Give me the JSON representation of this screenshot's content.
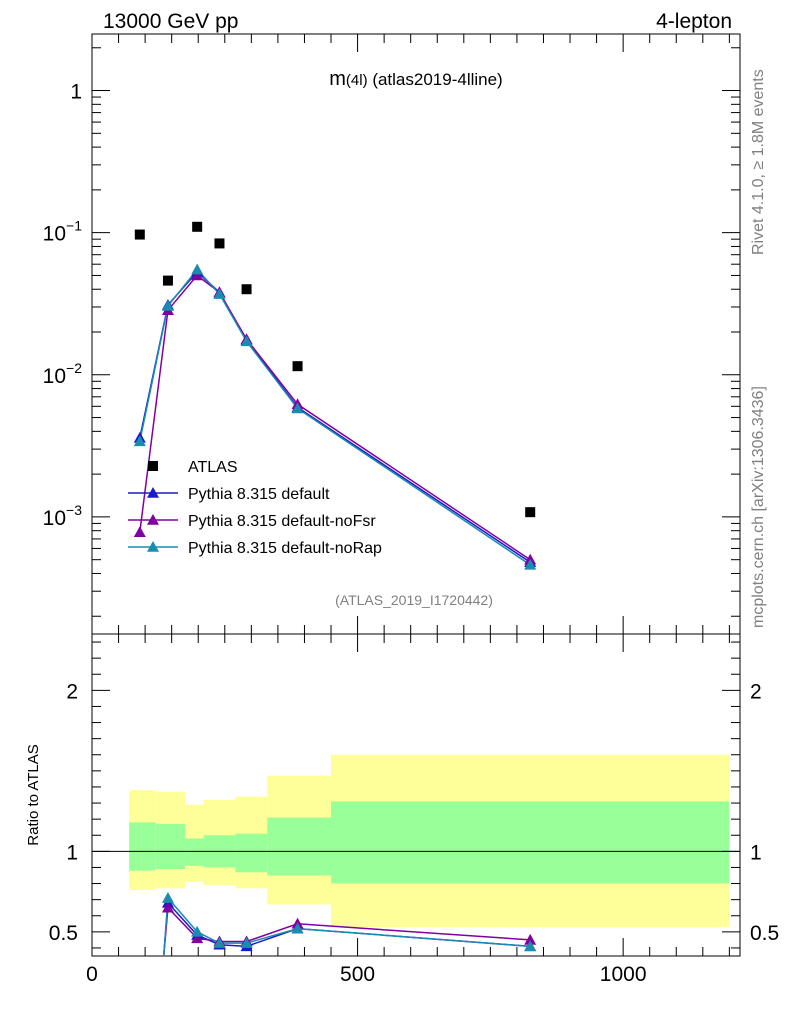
{
  "header": {
    "left": "13000 GeV pp",
    "right": "4-lepton"
  },
  "side_labels": {
    "rivet": "Rivet 4.1.0, ≥ 1.8M events",
    "mcplots": "mcplots.cern.ch [arXiv:1306.3436]"
  },
  "colors": {
    "data": "#000000",
    "default": "#1a1acc",
    "noFsr": "#8000a0",
    "noRap": "#1a8cb0",
    "band_inner": "#99ff99",
    "band_outer": "#ffff99",
    "ratio_line": "#000000",
    "watermark": "#808080"
  },
  "chart_data": [
    {
      "type": "line",
      "title": "m(4l) (atlas2019-4lline)",
      "title_main": "m",
      "title_sub": "(4l)",
      "title_rest": " (atlas2019-4lline)",
      "watermark": "(ATLAS_2019_I1720442)",
      "yscale": "log",
      "ylim": [
        0.00015,
        2.5
      ],
      "xlim": [
        0,
        1220
      ],
      "yticks": [
        {
          "value": 1,
          "label": "1",
          "sup": ""
        },
        {
          "value": 0.1,
          "label": "10",
          "sup": "−1"
        },
        {
          "value": 0.01,
          "label": "10",
          "sup": "−2"
        },
        {
          "value": 0.001,
          "label": "10",
          "sup": "−3"
        }
      ],
      "legend": [
        {
          "label": "ATLAS",
          "series": "data"
        },
        {
          "label": "Pythia 8.315 default",
          "series": "default"
        },
        {
          "label": "Pythia 8.315 default-noFsr",
          "series": "noFsr"
        },
        {
          "label": "Pythia 8.315 default-noRap",
          "series": "noRap"
        }
      ],
      "data": {
        "name": "ATLAS",
        "x": [
          90,
          143,
          198,
          240,
          291,
          387,
          825
        ],
        "y": [
          0.097,
          0.046,
          0.11,
          0.084,
          0.04,
          0.0115,
          0.00108
        ]
      },
      "series": [
        {
          "name": "Pythia 8.315 default",
          "key": "default",
          "x": [
            90,
            143,
            198,
            240,
            291,
            387,
            825
          ],
          "y": [
            0.0036,
            0.031,
            0.053,
            0.038,
            0.0175,
            0.0059,
            0.00048
          ]
        },
        {
          "name": "Pythia 8.315 default-noFsr",
          "key": "noFsr",
          "x": [
            90,
            143,
            198,
            240,
            291,
            387,
            825
          ],
          "y": [
            0.00078,
            0.0285,
            0.05,
            0.038,
            0.0178,
            0.0062,
            0.0005
          ]
        },
        {
          "name": "Pythia 8.315 default-noRap",
          "key": "noRap",
          "x": [
            90,
            143,
            198,
            240,
            291,
            387,
            825
          ],
          "y": [
            0.0034,
            0.0305,
            0.055,
            0.037,
            0.0172,
            0.0058,
            0.00046
          ]
        }
      ]
    },
    {
      "type": "line",
      "ylabel": "Ratio to ATLAS",
      "ylim": [
        0.35,
        2.35
      ],
      "xlim": [
        0,
        1220
      ],
      "yticks": [
        {
          "value": 2,
          "label": "2"
        },
        {
          "value": 1,
          "label": "1"
        },
        {
          "value": 0.5,
          "label": "0.5"
        }
      ],
      "xticks": [
        {
          "value": 0,
          "label": "0"
        },
        {
          "value": 500,
          "label": "500"
        },
        {
          "value": 1000,
          "label": "1000"
        }
      ],
      "bins": [
        70,
        120,
        175,
        210,
        270,
        330,
        450,
        1200
      ],
      "band_inner": [
        [
          0.88,
          1.18
        ],
        [
          0.89,
          1.17
        ],
        [
          0.91,
          1.08
        ],
        [
          0.9,
          1.1
        ],
        [
          0.87,
          1.11
        ],
        [
          0.85,
          1.21
        ],
        [
          0.8,
          1.31
        ]
      ],
      "band_outer": [
        [
          0.76,
          1.38
        ],
        [
          0.77,
          1.37
        ],
        [
          0.81,
          1.29
        ],
        [
          0.79,
          1.32
        ],
        [
          0.77,
          1.34
        ],
        [
          0.67,
          1.47
        ],
        [
          0.53,
          1.6
        ]
      ],
      "series": [
        {
          "name": "Pythia 8.315 default",
          "key": "default",
          "x": [
            135,
            143,
            198,
            240,
            291,
            387,
            825
          ],
          "y": [
            0.35,
            0.68,
            0.48,
            0.42,
            0.41,
            0.52,
            0.41
          ]
        },
        {
          "name": "Pythia 8.315 default-noFsr",
          "key": "noFsr",
          "x": [
            135,
            143,
            198,
            240,
            291,
            387,
            825
          ],
          "y": [
            0.35,
            0.65,
            0.46,
            0.44,
            0.44,
            0.55,
            0.45
          ]
        },
        {
          "name": "Pythia 8.315 default-noRap",
          "key": "noRap",
          "x": [
            135,
            143,
            198,
            240,
            291,
            387,
            825
          ],
          "y": [
            0.35,
            0.71,
            0.5,
            0.43,
            0.43,
            0.52,
            0.41
          ]
        }
      ]
    }
  ]
}
